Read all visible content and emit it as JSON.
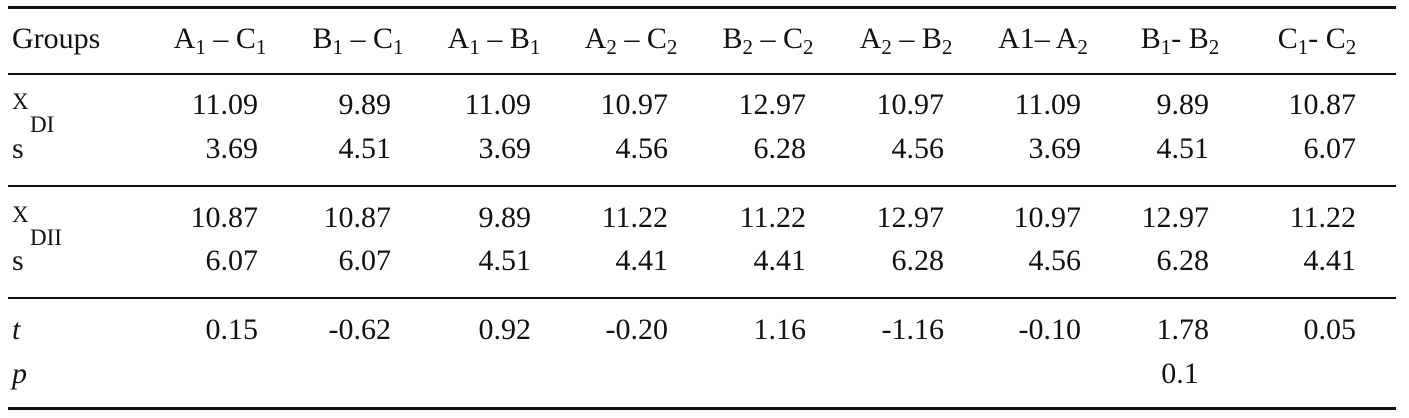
{
  "header": {
    "groups_label": "Groups",
    "columns": [
      {
        "a": "A",
        "a_sub": "1",
        "sep": " – ",
        "b": "C",
        "b_sub": "1"
      },
      {
        "a": "B",
        "a_sub": "1",
        "sep": " – ",
        "b": "C",
        "b_sub": "1"
      },
      {
        "a": "A",
        "a_sub": "1",
        "sep": " – ",
        "b": "B",
        "b_sub": "1"
      },
      {
        "a": "A",
        "a_sub": "2",
        "sep": " – ",
        "b": "C",
        "b_sub": "2"
      },
      {
        "a": "B",
        "a_sub": "2",
        "sep": " – ",
        "b": "C",
        "b_sub": "2"
      },
      {
        "a": "A",
        "a_sub": "2",
        "sep": " – ",
        "b": "B",
        "b_sub": "2"
      },
      {
        "a": "A1",
        "a_sub": "",
        "sep": "– ",
        "b": "A",
        "b_sub": "2"
      },
      {
        "a": "B",
        "a_sub": "1",
        "sep": "- ",
        "b": "B",
        "b_sub": "2"
      },
      {
        "a": "C",
        "a_sub": "1",
        "sep": "- ",
        "b": "C",
        "b_sub": "2"
      }
    ]
  },
  "sections": [
    {
      "mean_label": "X",
      "mean_sub": "DI",
      "s_label": "s",
      "means": [
        "11.09",
        "9.89",
        "11.09",
        "10.97",
        "12.97",
        "10.97",
        "11.09",
        "9.89",
        "10.87"
      ],
      "sds": [
        "3.69",
        "4.51",
        "3.69",
        "4.56",
        "6.28",
        "4.56",
        "3.69",
        "4.51",
        "6.07"
      ]
    },
    {
      "mean_label": "X",
      "mean_sub": "DII",
      "s_label": "s",
      "means": [
        "10.87",
        "10.87",
        "9.89",
        "11.22",
        "11.22",
        "12.97",
        "10.97",
        "12.97",
        "11.22"
      ],
      "sds": [
        "6.07",
        "6.07",
        "4.51",
        "4.41",
        "4.41",
        "6.28",
        "4.56",
        "6.28",
        "4.41"
      ]
    }
  ],
  "stats": {
    "t_label": "t",
    "p_label": "p",
    "t_values": [
      "0.15",
      "-0.62",
      "0.92",
      "-0.20",
      "1.16",
      "-1.16",
      "-0.10",
      "1.78",
      "0.05"
    ],
    "p_values": [
      "",
      "",
      "",
      "",
      "",
      "",
      "",
      "0.1",
      ""
    ]
  }
}
